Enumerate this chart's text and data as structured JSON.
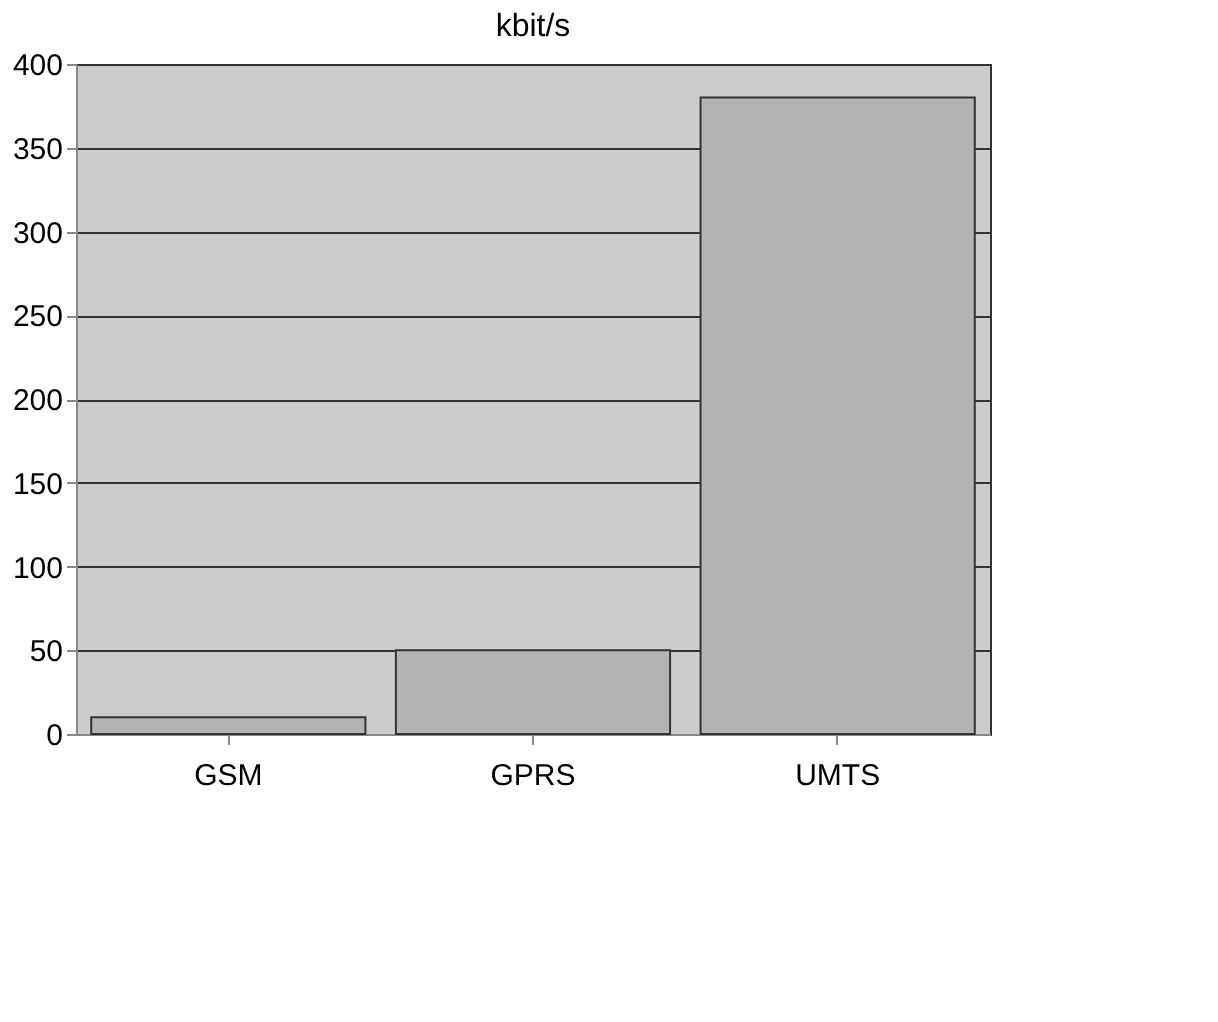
{
  "chart_data": {
    "type": "bar",
    "title": "kbit/s",
    "categories": [
      "GSM",
      "GPRS",
      "UMTS"
    ],
    "values": [
      10,
      50,
      380
    ],
    "color": "#b4b4b4",
    "ylim": [
      0,
      400
    ],
    "yticks": [
      0,
      50,
      100,
      150,
      200,
      250,
      300,
      350,
      400
    ],
    "grid": "y"
  }
}
